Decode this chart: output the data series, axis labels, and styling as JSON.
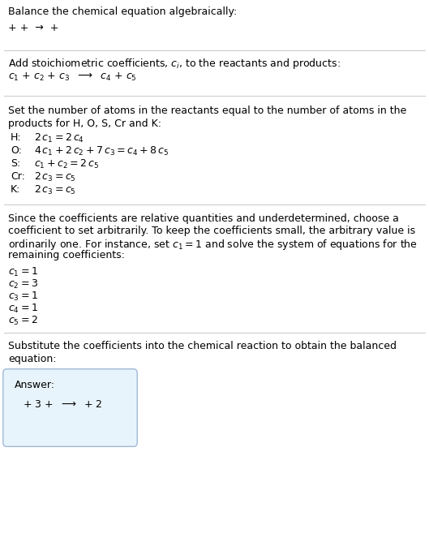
{
  "bg_color": "#ffffff",
  "text_color": "#000000",
  "line_color": "#cccccc",
  "box_color": "#e8f4fb",
  "box_border": "#a0b8d8",
  "title": "Balance the chemical equation algebraically:",
  "section2_title": "Add stoichiometric coefficients, $c_i$, to the reactants and products:",
  "section3_title": "Set the number of atoms in the reactants equal to the number of atoms in the",
  "section3_title2": "products for H, O, S, Cr and K:",
  "equations": [
    [
      "H:",
      "$2\\,c_1 = 2\\,c_4$"
    ],
    [
      "O:",
      "$4\\,c_1 + 2\\,c_2 + 7\\,c_3 = c_4 + 8\\,c_5$"
    ],
    [
      "S:",
      "$c_1 + c_2 = 2\\,c_5$"
    ],
    [
      "Cr:",
      "$2\\,c_3 = c_5$"
    ],
    [
      "K:",
      "$2\\,c_3 = c_5$"
    ]
  ],
  "section4_para1": "Since the coefficients are relative quantities and underdetermined, choose a",
  "section4_para2": "coefficient to set arbitrarily. To keep the coefficients small, the arbitrary value is",
  "section4_para3": "ordinarily one. For instance, set $c_1 = 1$ and solve the system of equations for the",
  "section4_para4": "remaining coefficients:",
  "coeff_solutions": [
    "$c_1 = 1$",
    "$c_2 = 3$",
    "$c_3 = 1$",
    "$c_4 = 1$",
    "$c_5 = 2$"
  ],
  "section5_title": "Substitute the coefficients into the chemical reaction to obtain the balanced",
  "section5_title2": "equation:",
  "answer_label": "Answer:",
  "answer_line": "+ 3 +  $\\longrightarrow$  + 2"
}
